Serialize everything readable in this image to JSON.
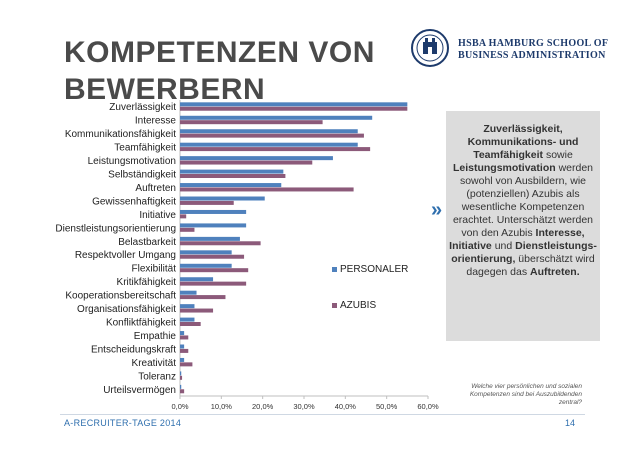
{
  "slide": {
    "title": "KOMPETENZEN VON BEWERBERN",
    "logo_line1": "HSBA HAMBURG SCHOOL OF",
    "logo_line2": "BUSINESS ADMINISTRATION",
    "chevron": "»",
    "callout": [
      {
        "text": "Zuverlässigkeit, Kommunikations- und Teamfähigkeit",
        "bold": true
      },
      {
        "text": " sowie ",
        "bold": false
      },
      {
        "text": "Leistungsmotivation",
        "bold": true
      },
      {
        "text": " werden sowohl von Ausbildern, wie (potenziellen) Azubis als wesentliche Kompetenzen erachtet. Unterschätzt werden von den Azubis ",
        "bold": false
      },
      {
        "text": "Interesse, Initiative",
        "bold": true
      },
      {
        "text": " und ",
        "bold": false
      },
      {
        "text": "Dienstleistungs-orientierung,",
        "bold": true
      },
      {
        "text": " überschätzt wird dagegen das ",
        "bold": false
      },
      {
        "text": "Auftreten.",
        "bold": true
      }
    ],
    "question_note": "Welche vier persönlichen und sozialen Kompetenzen sind bei Auszubildenden zentral?",
    "footer": "A-RECRUITER-TAGE 2014",
    "page_number": "14",
    "colors": {
      "personaler": "#4f81bd",
      "azubis": "#8c5a7a",
      "accent": "#2f6fae"
    }
  },
  "chart_data": {
    "type": "bar",
    "orientation": "horizontal",
    "title": "",
    "xlabel": "",
    "ylabel": "",
    "xlim": [
      0,
      0.6
    ],
    "xticks": [
      "0,0%",
      "10,0%",
      "20,0%",
      "30,0%",
      "40,0%",
      "50,0%",
      "60,0%"
    ],
    "legend_position": "right",
    "categories": [
      "Zuverlässigkeit",
      "Interesse",
      "Kommunikationsfähigkeit",
      "Teamfähigkeit",
      "Leistungsmotivation",
      "Selbständigkeit",
      "Auftreten",
      "Gewissenhaftigkeit",
      "Initiative",
      "Dienstleistungsorientierung",
      "Belastbarkeit",
      "Respektvoller Umgang",
      "Flexibilität",
      "Kritikfähigkeit",
      "Kooperationsbereitschaft",
      "Organisationsfähigkeit",
      "Konfliktfähigkeit",
      "Empathie",
      "Entscheidungskraft",
      "Kreativität",
      "Toleranz",
      "Urteilsvermögen"
    ],
    "series": [
      {
        "name": "PERSONALER",
        "values": [
          0.55,
          0.465,
          0.43,
          0.43,
          0.37,
          0.25,
          0.245,
          0.205,
          0.16,
          0.16,
          0.145,
          0.125,
          0.125,
          0.08,
          0.04,
          0.035,
          0.035,
          0.01,
          0.01,
          0.01,
          0.003,
          0.003
        ]
      },
      {
        "name": "AZUBIS",
        "values": [
          0.55,
          0.345,
          0.445,
          0.46,
          0.32,
          0.255,
          0.42,
          0.13,
          0.015,
          0.035,
          0.195,
          0.155,
          0.165,
          0.16,
          0.11,
          0.08,
          0.05,
          0.02,
          0.02,
          0.03,
          0.005,
          0.01
        ]
      }
    ]
  }
}
